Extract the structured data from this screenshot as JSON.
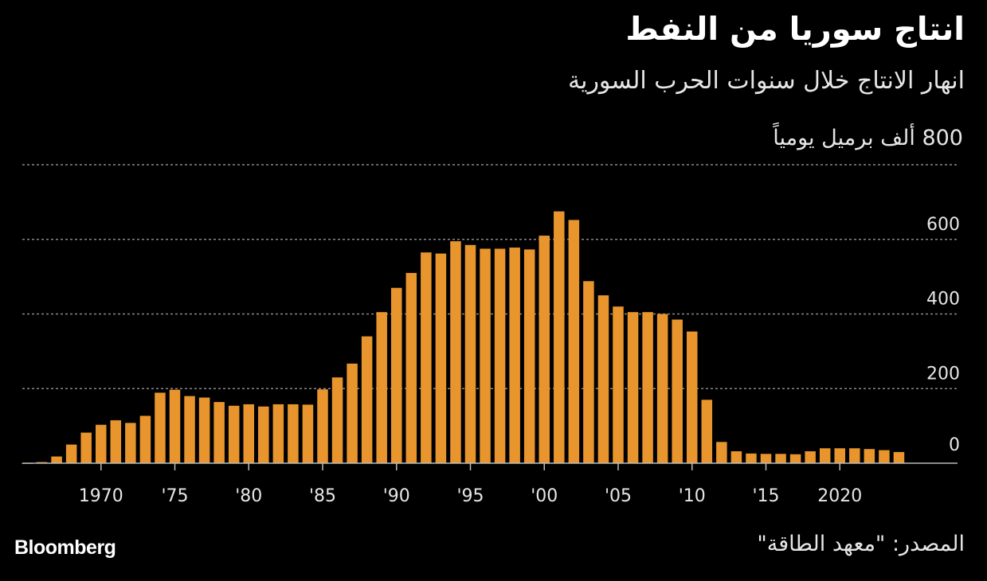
{
  "title": "انتاج سوريا من النفط",
  "subtitle": "انهار الانتاج خلال سنوات الحرب السورية",
  "source": "المصدر: \"معهد الطاقة\"",
  "brand": "Bloomberg",
  "colors": {
    "bar": "#E8952E",
    "background": "#000000",
    "grid": "#888888",
    "axis": "#bbbbbb",
    "text": "#e6e6e6"
  },
  "chart_data": {
    "type": "bar",
    "title": "انتاج سوريا من النفط",
    "subtitle": "انهار الانتاج خلال سنوات الحرب السورية",
    "ylabel": "ألف برميل يومياً",
    "top_tick_label": "800 ألف برميل يومياً",
    "ylim": [
      0,
      800
    ],
    "yticks": [
      {
        "value": 0,
        "label": "0"
      },
      {
        "value": 200,
        "label": "200"
      },
      {
        "value": 400,
        "label": "400"
      },
      {
        "value": 600,
        "label": "600"
      },
      {
        "value": 800,
        "label": "800"
      }
    ],
    "xticks": [
      {
        "year": 1970,
        "label": "1970"
      },
      {
        "year": 1975,
        "label": "'75"
      },
      {
        "year": 1980,
        "label": "'80"
      },
      {
        "year": 1985,
        "label": "'85"
      },
      {
        "year": 1990,
        "label": "'90"
      },
      {
        "year": 1995,
        "label": "'95"
      },
      {
        "year": 2000,
        "label": "'00"
      },
      {
        "year": 2005,
        "label": "'05"
      },
      {
        "year": 2010,
        "label": "'10"
      },
      {
        "year": 2015,
        "label": "'15"
      },
      {
        "year": 2020,
        "label": "2020"
      }
    ],
    "x": [
      1965,
      1966,
      1967,
      1968,
      1969,
      1970,
      1971,
      1972,
      1973,
      1974,
      1975,
      1976,
      1977,
      1978,
      1979,
      1980,
      1981,
      1982,
      1983,
      1984,
      1985,
      1986,
      1987,
      1988,
      1989,
      1990,
      1991,
      1992,
      1993,
      1994,
      1995,
      1996,
      1997,
      1998,
      1999,
      2000,
      2001,
      2002,
      2003,
      2004,
      2005,
      2006,
      2007,
      2008,
      2009,
      2010,
      2011,
      2012,
      2013,
      2014,
      2015,
      2016,
      2017,
      2018,
      2019,
      2020,
      2021,
      2022,
      2023,
      2024
    ],
    "values": [
      0,
      3,
      18,
      50,
      82,
      103,
      115,
      108,
      127,
      189,
      197,
      180,
      176,
      164,
      154,
      158,
      152,
      158,
      158,
      157,
      198,
      230,
      267,
      340,
      405,
      470,
      510,
      565,
      562,
      595,
      585,
      575,
      575,
      578,
      573,
      610,
      675,
      652,
      488,
      450,
      420,
      405,
      405,
      400,
      385,
      353,
      170,
      57,
      32,
      26,
      25,
      25,
      24,
      32,
      40,
      40,
      40,
      38,
      35,
      30
    ]
  }
}
